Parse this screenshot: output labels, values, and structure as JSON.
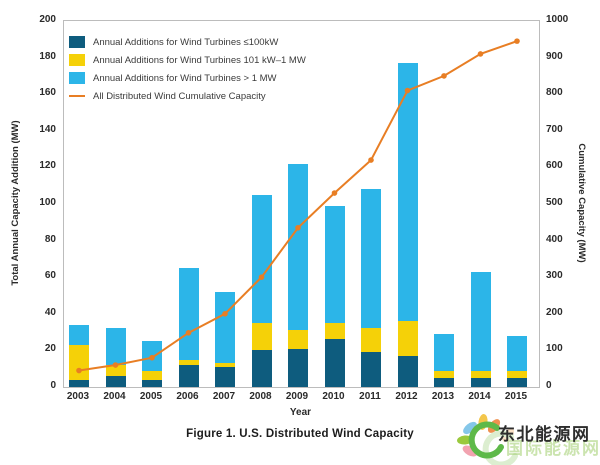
{
  "chart_data": {
    "type": "bar+line",
    "title": "Figure 1. U.S. Distributed Wind Capacity",
    "categories": [
      "2003",
      "2004",
      "2005",
      "2006",
      "2007",
      "2008",
      "2009",
      "2010",
      "2011",
      "2012",
      "2013",
      "2014",
      "2015"
    ],
    "series": [
      {
        "name": "Annual Additions for Wind Turbines ≤100kW",
        "color": "#0e5c7e",
        "values": [
          4,
          6,
          4,
          12,
          11,
          20,
          21,
          26,
          19,
          17,
          5,
          5,
          5
        ]
      },
      {
        "name": "Annual Additions for Wind Turbines 101 kW–1 MW",
        "color": "#f5d108",
        "values": [
          19,
          6,
          5,
          3,
          2,
          15,
          10,
          9,
          13,
          19,
          4,
          4,
          4
        ]
      },
      {
        "name": "Annual Additions for Wind Turbines > 1 MW",
        "color": "#2cb5e8",
        "values": [
          11,
          20,
          16,
          50,
          39,
          70,
          91,
          64,
          76,
          141,
          20,
          54,
          19
        ]
      }
    ],
    "totals": [
      34,
      32,
      25,
      65,
      52,
      105,
      122,
      99,
      108,
      177,
      29,
      63,
      28
    ],
    "line_series": {
      "name": "All Distributed Wind Cumulative Capacity",
      "color": "#e87e24",
      "values": [
        45,
        60,
        80,
        148,
        200,
        300,
        435,
        530,
        620,
        810,
        850,
        910,
        945
      ]
    },
    "x_label": "Year",
    "y_left": {
      "label": "Total Annual Capacity Addition (MW)",
      "min": 0,
      "max": 200,
      "step": 20
    },
    "y_right": {
      "label": "Cumulative Capacity (MW)",
      "min": 0,
      "max": 1000,
      "step": 100
    },
    "legend_position": "top-left",
    "grid": false
  },
  "watermark": {
    "text": "东北能源网",
    "ghost_text": "国际能源网",
    "logo": "flower-sun-icon"
  }
}
